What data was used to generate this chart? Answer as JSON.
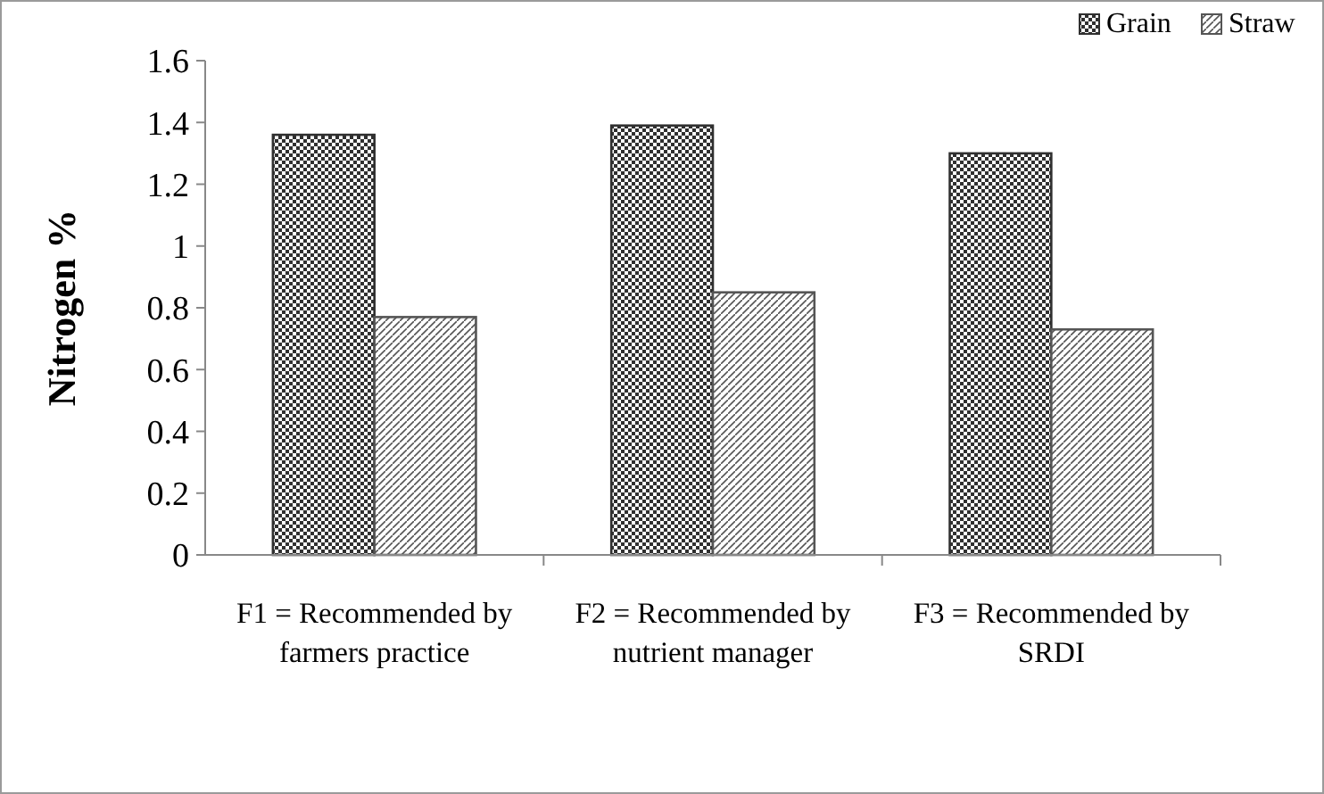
{
  "chart_data": {
    "type": "bar",
    "ylabel": "Nitrogen %",
    "categories": [
      "F1 = Recommended by farmers practice",
      "F2 = Recommended by nutrient manager",
      "F3 = Recommended by SRDI"
    ],
    "series": [
      {
        "name": "Grain",
        "color": "#303030",
        "values": [
          1.36,
          1.39,
          1.3
        ]
      },
      {
        "name": "Straw",
        "color": "#555555",
        "values": [
          0.77,
          0.85,
          0.73
        ]
      }
    ],
    "ylim": [
      0,
      1.6
    ],
    "yticks": [
      0,
      0.2,
      0.4,
      0.6,
      0.8,
      1,
      1.2,
      1.4,
      1.6
    ],
    "grid": false,
    "legend": "top right"
  }
}
